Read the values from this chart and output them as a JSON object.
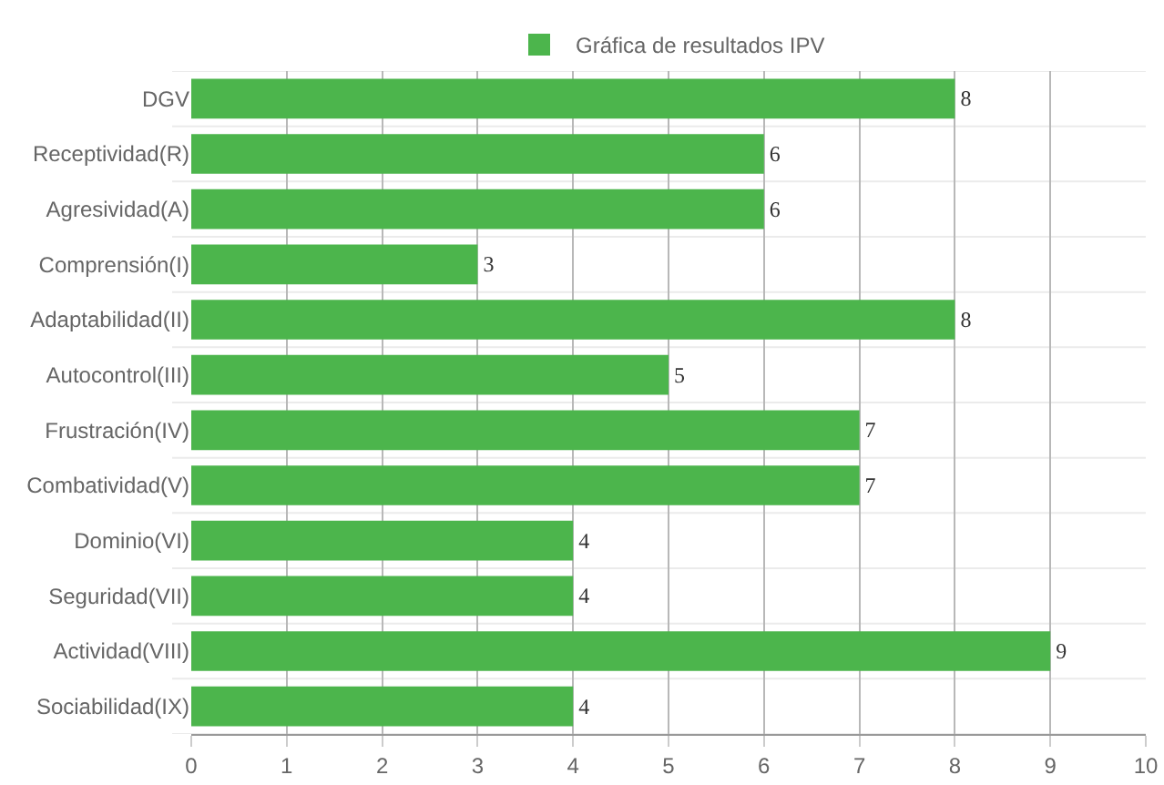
{
  "chart_data": {
    "type": "bar",
    "orientation": "horizontal",
    "categories": [
      "DGV",
      "Receptividad(R)",
      "Agresividad(A)",
      "Comprensión(I)",
      "Adaptabilidad(II)",
      "Autocontrol(III)",
      "Frustración(IV)",
      "Combatividad(V)",
      "Dominio(VI)",
      "Seguridad(VII)",
      "Actividad(VIII)",
      "Sociabilidad(IX)"
    ],
    "series": [
      {
        "name": "Gráfica de resultados IPV",
        "color": "#4cb54c",
        "values": [
          8,
          6,
          6,
          3,
          8,
          5,
          7,
          7,
          4,
          4,
          9,
          4
        ]
      }
    ],
    "xlim": [
      0,
      10
    ],
    "xticks": [
      0,
      1,
      2,
      3,
      4,
      5,
      6,
      7,
      8,
      9,
      10
    ],
    "grid": true,
    "legend": "top",
    "data_labels": true
  }
}
